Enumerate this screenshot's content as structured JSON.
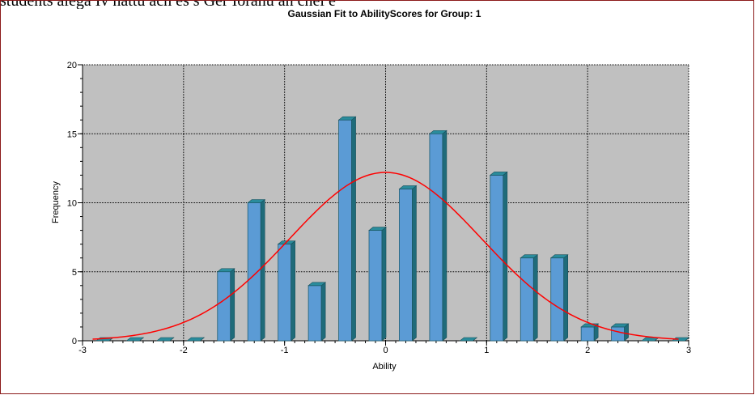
{
  "caption": "students alega Iv nattu ach es s Ger Ioranu an cnel  e",
  "chart_data": {
    "type": "bar",
    "title": "Gaussian Fit to AbilityScores for Group: 1",
    "xlabel": "Ability",
    "ylabel": "Frequency",
    "xlim": [
      -3,
      3
    ],
    "ylim": [
      0,
      20
    ],
    "xticks": [
      "-3",
      "-2",
      "-1",
      "0",
      "1",
      "2",
      "3"
    ],
    "yticks": [
      "0",
      "5",
      "10",
      "15",
      "20"
    ],
    "grid": true,
    "plot_background": "#c0c0c0",
    "bar_color": "#5b9bd5",
    "curve_color": "#ff0000",
    "bins": {
      "x": [
        -2.8,
        -2.5,
        -2.2,
        -1.9,
        -1.6,
        -1.3,
        -1.0,
        -0.7,
        -0.4,
        -0.1,
        0.2,
        0.5,
        0.8,
        1.1,
        1.4,
        1.7,
        2.0,
        2.3,
        2.6,
        2.9
      ],
      "values": [
        0,
        0,
        0,
        0,
        5,
        10,
        7,
        4,
        16,
        8,
        11,
        15,
        0,
        12,
        6,
        6,
        1,
        1,
        0,
        0
      ]
    },
    "gaussian_fit": {
      "peak": 12.2,
      "mean": 0.0,
      "sd": 0.95
    }
  }
}
